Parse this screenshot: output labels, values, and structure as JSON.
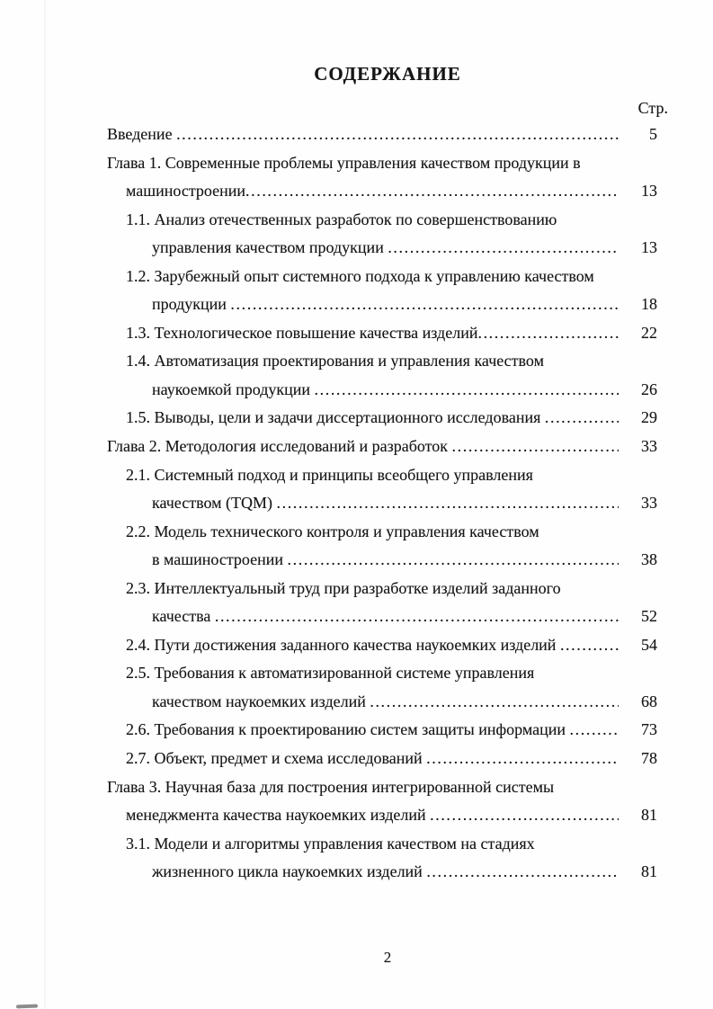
{
  "page": {
    "title": "СОДЕРЖАНИЕ",
    "page_column_header": "Стр.",
    "footer_page_number": "2"
  },
  "colors": {
    "paper": "#fefefe",
    "ink": "#161616"
  },
  "toc": {
    "lines": [
      {
        "text": "Введение ",
        "indent": 0,
        "page": "5"
      },
      {
        "text": "Глава 1. Современные проблемы управления качеством продукции в",
        "indent": 0,
        "page": ""
      },
      {
        "text": "машиностроении",
        "indent": 1,
        "page": "13"
      },
      {
        "text": "1.1. Анализ отечественных разработок по совершенствованию",
        "indent": 1,
        "page": ""
      },
      {
        "text": "управления качеством продукции ",
        "indent": 2,
        "page": "13"
      },
      {
        "text": "1.2. Зарубежный опыт системного подхода к управлению качеством",
        "indent": 1,
        "page": ""
      },
      {
        "text": "продукции ",
        "indent": 2,
        "page": "18"
      },
      {
        "text": "1.3. Технологическое повышение качества изделий",
        "indent": 1,
        "page": "22"
      },
      {
        "text": "1.4. Автоматизация проектирования и управления качеством",
        "indent": 1,
        "page": ""
      },
      {
        "text": "наукоемкой продукции ",
        "indent": 2,
        "page": "26"
      },
      {
        "text": "1.5. Выводы, цели и задачи диссертационного исследования ",
        "indent": 1,
        "page": "29"
      },
      {
        "text": "Глава 2. Методология исследований и разработок ",
        "indent": 0,
        "page": "33"
      },
      {
        "text": "2.1. Системный подход и принципы всеобщего управления",
        "indent": 1,
        "page": ""
      },
      {
        "text": "качеством (TQM) ",
        "indent": 2,
        "page": "33"
      },
      {
        "text": "2.2. Модель технического контроля и управления качеством",
        "indent": 1,
        "page": ""
      },
      {
        "text": "в машиностроении ",
        "indent": 2,
        "page": "38"
      },
      {
        "text": "2.3. Интеллектуальный труд при разработке изделий заданного",
        "indent": 1,
        "page": ""
      },
      {
        "text": "качества ",
        "indent": 2,
        "page": "52"
      },
      {
        "text": "2.4. Пути достижения заданного качества наукоемких изделий ",
        "indent": 1,
        "page": "54"
      },
      {
        "text": "2.5. Требования к автоматизированной системе управления",
        "indent": 1,
        "page": ""
      },
      {
        "text": "качеством наукоемких изделий ",
        "indent": 2,
        "page": "68"
      },
      {
        "text": "2.6. Требования к проектированию систем защиты информации ",
        "indent": 1,
        "page": "73"
      },
      {
        "text": "2.7. Объект, предмет и схема исследований ",
        "indent": 1,
        "page": "78"
      },
      {
        "text": "Глава 3. Научная база для построения интегрированной системы",
        "indent": 0,
        "page": ""
      },
      {
        "text": "менеджмента качества наукоемких изделий ",
        "indent": 1,
        "page": "81"
      },
      {
        "text": "3.1. Модели и алгоритмы управления качеством на стадиях",
        "indent": 1,
        "page": ""
      },
      {
        "text": "жизненного цикла наукоемких изделий ",
        "indent": 2,
        "page": "81"
      }
    ]
  }
}
